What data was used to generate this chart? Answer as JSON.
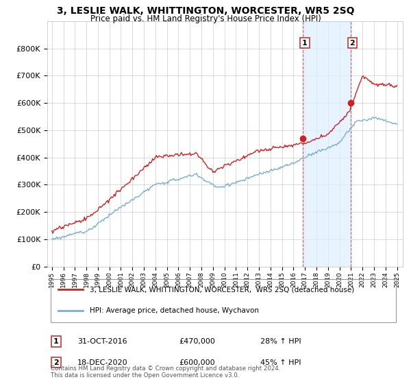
{
  "title": "3, LESLIE WALK, WHITTINGTON, WORCESTER, WR5 2SQ",
  "subtitle": "Price paid vs. HM Land Registry's House Price Index (HPI)",
  "ylim": [
    0,
    900000
  ],
  "xlim_start": 1994.6,
  "xlim_end": 2025.5,
  "sale1_date": 2016.83,
  "sale1_price": 470000,
  "sale2_date": 2020.96,
  "sale2_price": 600000,
  "hpi_color": "#7aadd4",
  "price_color": "#cc2222",
  "bg_color": "#ffffff",
  "grid_color": "#cccccc",
  "shade_color": "#ddeeff",
  "vline_color": "#cc4444",
  "legend_label_price": "3, LESLIE WALK, WHITTINGTON, WORCESTER,  WR5 2SQ (detached house)",
  "legend_label_hpi": "HPI: Average price, detached house, Wychavon",
  "footer": "Contains HM Land Registry data © Crown copyright and database right 2024.\nThis data is licensed under the Open Government Licence v3.0."
}
